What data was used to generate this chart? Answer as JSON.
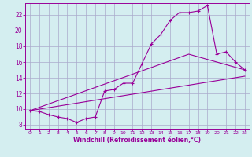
{
  "xlabel": "Windchill (Refroidissement éolien,°C)",
  "bg_color": "#d4eef0",
  "line_color": "#990099",
  "grid_color": "#aaaacc",
  "xlim": [
    -0.5,
    23.5
  ],
  "ylim": [
    7.5,
    23.5
  ],
  "xticks": [
    0,
    1,
    2,
    3,
    4,
    5,
    6,
    7,
    8,
    9,
    10,
    11,
    12,
    13,
    14,
    15,
    16,
    17,
    18,
    19,
    20,
    21,
    22,
    23
  ],
  "yticks": [
    8,
    10,
    12,
    14,
    16,
    18,
    20,
    22
  ],
  "line1_x": [
    0,
    1,
    2,
    3,
    4,
    5,
    6,
    7,
    8,
    9,
    10,
    11,
    12,
    13,
    14,
    15,
    16,
    17,
    18,
    19,
    20,
    21,
    22,
    23
  ],
  "line1_y": [
    9.8,
    9.7,
    9.3,
    9.0,
    8.8,
    8.3,
    8.8,
    9.0,
    12.3,
    12.5,
    13.3,
    13.3,
    15.8,
    18.3,
    19.5,
    21.3,
    22.3,
    22.3,
    22.5,
    23.2,
    17.0,
    17.3,
    16.0,
    15.0
  ],
  "line2_x": [
    0,
    23
  ],
  "line2_y": [
    9.8,
    14.2
  ],
  "line3_x": [
    0,
    17,
    23
  ],
  "line3_y": [
    9.8,
    17.0,
    15.0
  ]
}
